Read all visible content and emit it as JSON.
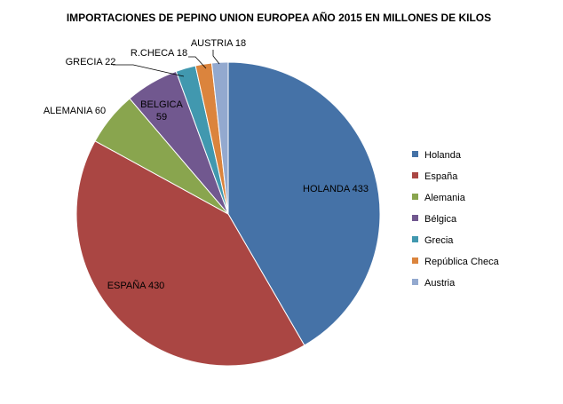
{
  "chart_data": {
    "type": "pie",
    "title": "IMPORTACIONES DE PEPINO UNION EUROPEA AÑO 2015 EN MILLONES  DE KILOS",
    "legend_position": "right",
    "slices": [
      {
        "legend": "Holanda",
        "value": 433,
        "data_label": [
          "HOLANDA 433"
        ],
        "color": "#4572A7"
      },
      {
        "legend": "España",
        "value": 430,
        "data_label": [
          "ESPAÑA 430"
        ],
        "color": "#AA4643"
      },
      {
        "legend": "Alemania",
        "value": 60,
        "data_label": [
          "ALEMANIA 60"
        ],
        "color": "#89A54E"
      },
      {
        "legend": "Bélgica",
        "value": 59,
        "data_label": [
          "BELGICA",
          "59"
        ],
        "color": "#71588F"
      },
      {
        "legend": "Grecia",
        "value": 22,
        "data_label": [
          "GRECIA 22"
        ],
        "color": "#4198AF"
      },
      {
        "legend": "República Checa",
        "value": 18,
        "data_label": [
          "R.CHECA 18"
        ],
        "color": "#DB843D"
      },
      {
        "legend": "Austria",
        "value": 18,
        "data_label": [
          "AUSTRIA 18"
        ],
        "color": "#93A9CF"
      }
    ]
  }
}
